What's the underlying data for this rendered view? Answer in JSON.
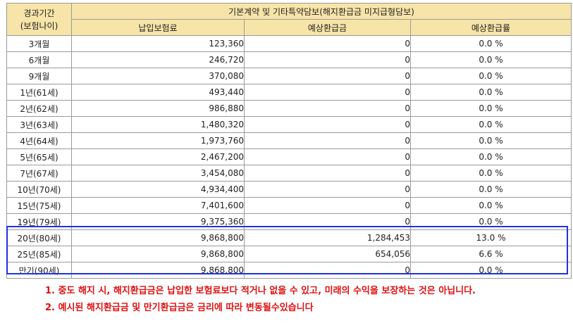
{
  "header": {
    "period_line1": "경과기간",
    "period_line2": "(보험나이)",
    "group_title": "기본계약 및 기타특약담보(해지환급금 미지급형담보)",
    "col_premium": "납입보험료",
    "col_refund": "예상환급금",
    "col_rate": "예상환급률"
  },
  "rows": [
    {
      "period": "3개월",
      "premium": "123,360",
      "refund": "0",
      "rate": "0.0 %"
    },
    {
      "period": "6개월",
      "premium": "246,720",
      "refund": "0",
      "rate": "0.0 %"
    },
    {
      "period": "9개월",
      "premium": "370,080",
      "refund": "0",
      "rate": "0.0 %"
    },
    {
      "period": "1년(61세)",
      "premium": "493,440",
      "refund": "0",
      "rate": "0.0 %"
    },
    {
      "period": "2년(62세)",
      "premium": "986,880",
      "refund": "0",
      "rate": "0.0 %"
    },
    {
      "period": "3년(63세)",
      "premium": "1,480,320",
      "refund": "0",
      "rate": "0.0 %"
    },
    {
      "period": "4년(64세)",
      "premium": "1,973,760",
      "refund": "0",
      "rate": "0.0 %"
    },
    {
      "period": "5년(65세)",
      "premium": "2,467,200",
      "refund": "0",
      "rate": "0.0 %"
    },
    {
      "period": "7년(67세)",
      "premium": "3,454,080",
      "refund": "0",
      "rate": "0.0 %"
    },
    {
      "period": "10년(70세)",
      "premium": "4,934,400",
      "refund": "0",
      "rate": "0.0 %"
    },
    {
      "period": "15년(75세)",
      "premium": "7,401,600",
      "refund": "0",
      "rate": "0.0 %"
    },
    {
      "period": "19년(79세)",
      "premium": "9,375,360",
      "refund": "0",
      "rate": "0.0 %"
    },
    {
      "period": "20년(80세)",
      "premium": "9,868,800",
      "refund": "1,284,453",
      "rate": "13.0 %"
    },
    {
      "period": "25년(85세)",
      "premium": "9,868,800",
      "refund": "654,056",
      "rate": "6.6 %"
    },
    {
      "period": "만기(90세)",
      "premium": "9,868,800",
      "refund": "0",
      "rate": "0.0 %"
    }
  ],
  "highlight_color": "#1f33e0",
  "header_bg": "#f7e4a8",
  "notes": [
    "1. 중도 해지 시, 해지환급금은 납입한 보험료보다 적거나 없을 수 있고, 미래의 수익을 보장하는 것은 아닙니다.",
    "2. 예시된 해지환급금 및 만기환급금은 금리에 따라 변동될수있습니다"
  ],
  "notes_color": "#e01010"
}
